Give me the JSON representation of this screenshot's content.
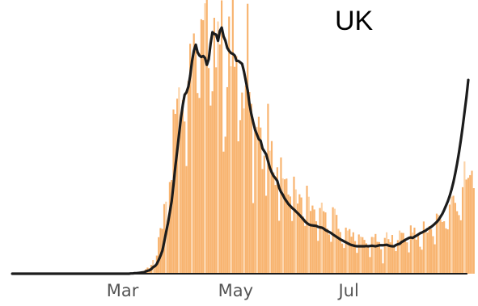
{
  "chart_data": {
    "type": "bar",
    "overlay": "line",
    "title": "UK",
    "xlabel": "",
    "ylabel": "",
    "x_ticks": [
      "Mar",
      "May",
      "Jul"
    ],
    "x_tick_days": [
      60,
      121,
      182
    ],
    "x_range_days": [
      0,
      250
    ],
    "ylim": [
      0,
      1100
    ],
    "grid": false,
    "legend": "none",
    "colors": {
      "bars": "#f8b470",
      "bars_alt": "#fcd3a8",
      "line": "#1c1c1c",
      "baseline": "#1c1c1c",
      "tick_text": "#555555",
      "title_text": "#000000"
    },
    "series": [
      {
        "type": "bar",
        "day_start": 0,
        "values": [
          0,
          0,
          0,
          0,
          0,
          0,
          0,
          0,
          0,
          0,
          0,
          0,
          0,
          0,
          0,
          0,
          0,
          0,
          0,
          0,
          0,
          0,
          0,
          0,
          0,
          0,
          0,
          0,
          0,
          0,
          0,
          0,
          0,
          0,
          0,
          0,
          0,
          0,
          0,
          0,
          0,
          0,
          0,
          0,
          0,
          0,
          0,
          0,
          0,
          0,
          0,
          0,
          0,
          0,
          0,
          0,
          0,
          0,
          0,
          0,
          0,
          0,
          0,
          0,
          1,
          2,
          2,
          3,
          6,
          9,
          10,
          12,
          18,
          25,
          22,
          36,
          56,
          35,
          74,
          149,
          186,
          183,
          284,
          294,
          214,
          374,
          382,
          670,
          652,
          714,
          760,
          644,
          708,
          621,
          439,
          786,
          938,
          881,
          980,
          917,
          737,
          717,
          1038,
          1034,
          1103,
          1152,
          839,
          686,
          744,
          1044,
          842,
          1029,
          935,
          1115,
          498,
          559,
          761,
          1049,
          846,
          1150,
          844,
          888,
          540,
          626,
          739,
          674,
          768,
          1101,
          741,
          693,
          288,
          595,
          599,
          640,
          596,
          427,
          482,
          318,
          693,
          502,
          541,
          413,
          362,
          434,
          216,
          474,
          389,
          385,
          388,
          323,
          315,
          215,
          396,
          344,
          286,
          324,
          311,
          233,
          195,
          359,
          314,
          256,
          278,
          262,
          214,
          134,
          268,
          290,
          255,
          250,
          184,
          160,
          130,
          271,
          265,
          240,
          183,
          170,
          123,
          105,
          188,
          176,
          182,
          151,
          169,
          133,
          85,
          160,
          151,
          149,
          138,
          124,
          109,
          68,
          150,
          149,
          162,
          130,
          129,
          100,
          42,
          146,
          169,
          141,
          128,
          158,
          114,
          92,
          137,
          176,
          167,
          166,
          143,
          128,
          87,
          197,
          168,
          188,
          139,
          165,
          110,
          98,
          213,
          178,
          168,
          194,
          182,
          153,
          120,
          245,
          240,
          222,
          211,
          214,
          185,
          181,
          282,
          314,
          318,
          289,
          255,
          239,
          218,
          353,
          458,
          384,
          391,
          402,
          420,
          349
        ]
      },
      {
        "type": "line",
        "name": "",
        "day_start": 0,
        "values": [
          0,
          0,
          0,
          0,
          0,
          0,
          0,
          0,
          0,
          0,
          0,
          0,
          0,
          0,
          0,
          0,
          0,
          0,
          0,
          0,
          0,
          0,
          0,
          0,
          0,
          0,
          0,
          0,
          0,
          0,
          0,
          0,
          0,
          0,
          0,
          0,
          0,
          0,
          0,
          0,
          0,
          0,
          0,
          0,
          0,
          0,
          0,
          0,
          0,
          0,
          0,
          0,
          0,
          0,
          0,
          0,
          0,
          0,
          0,
          0,
          0,
          0,
          0,
          0,
          1,
          1,
          2,
          2,
          3,
          4,
          5,
          6,
          9,
          12,
          14,
          19,
          27,
          31,
          40,
          56,
          74,
          94,
          131,
          170,
          206,
          251,
          296,
          364,
          438,
          503,
          570,
          635,
          688,
          730,
          740,
          763,
          808,
          868,
          910,
          934,
          903,
          890,
          884,
          888,
          880,
          852,
          875,
          939,
          985,
          978,
          975,
          950,
          990,
          1004,
          968,
          950,
          921,
          909,
          900,
          897,
          890,
          868,
          868,
          862,
          856,
          825,
          786,
          748,
          690,
          650,
          617,
          587,
          568,
          549,
          542,
          511,
          499,
          486,
          459,
          431,
          413,
          398,
          389,
          378,
          350,
          333,
          321,
          306,
          295,
          284,
          276,
          268,
          262,
          254,
          247,
          239,
          231,
          222,
          213,
          206,
          201,
          198,
          197,
          196,
          195,
          191,
          189,
          188,
          184,
          178,
          174,
          170,
          166,
          160,
          155,
          150,
          145,
          140,
          136,
          132,
          128,
          124,
          120,
          117,
          115,
          113,
          112,
          112,
          112,
          112,
          112,
          113,
          112,
          113,
          114,
          113,
          112,
          114,
          116,
          116,
          116,
          117,
          118,
          115,
          113,
          112,
          112,
          117,
          120,
          122,
          129,
          133,
          138,
          142,
          146,
          148,
          146,
          151,
          155,
          160,
          165,
          168,
          172,
          176,
          182,
          186,
          191,
          197,
          204,
          211,
          220,
          232,
          244,
          260,
          278,
          296,
          318,
          344,
          374,
          410,
          450,
          495,
          545,
          600,
          660,
          720,
          790
        ]
      }
    ]
  }
}
